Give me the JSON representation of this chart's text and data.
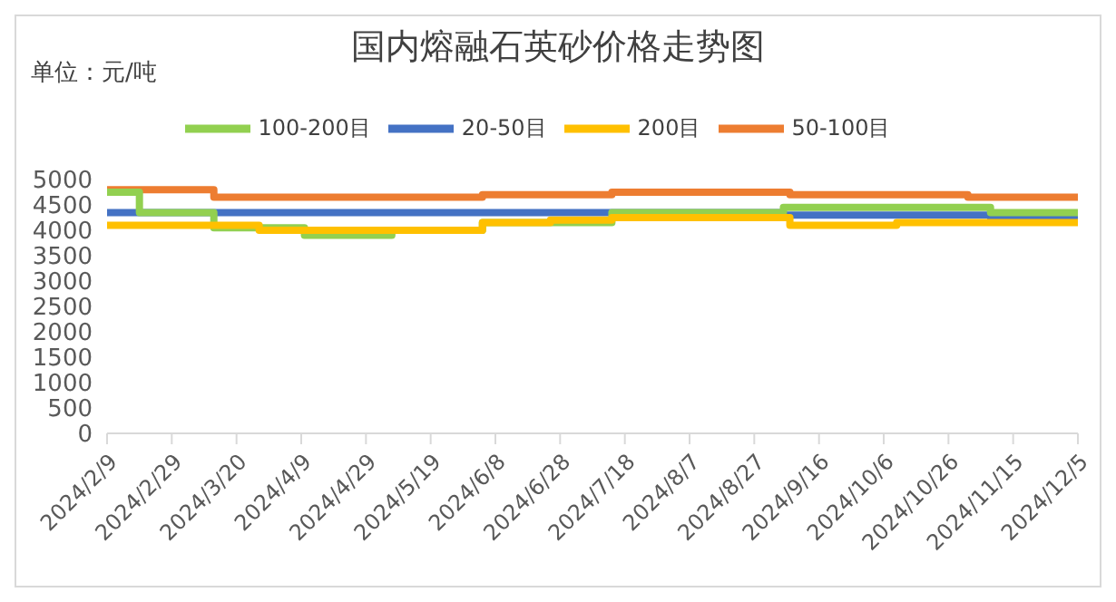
{
  "chart_data": {
    "type": "step",
    "title": "国内熔融石英砂价格走势图",
    "annotations": [
      "单位：元/吨"
    ],
    "xlim": [
      "2024-02-09",
      "2024-12-05"
    ],
    "xticks": [
      {
        "value": "2024-02-09",
        "label": "2024/2/9"
      },
      {
        "value": "2024-02-29",
        "label": "2024/2/29"
      },
      {
        "value": "2024-03-20",
        "label": "2024/3/20"
      },
      {
        "value": "2024-04-09",
        "label": "2024/4/9"
      },
      {
        "value": "2024-04-29",
        "label": "2024/4/29"
      },
      {
        "value": "2024-05-19",
        "label": "2024/5/19"
      },
      {
        "value": "2024-06-08",
        "label": "2024/6/8"
      },
      {
        "value": "2024-06-28",
        "label": "2024/6/28"
      },
      {
        "value": "2024-07-18",
        "label": "2024/7/18"
      },
      {
        "value": "2024-08-07",
        "label": "2024/8/7"
      },
      {
        "value": "2024-08-27",
        "label": "2024/8/27"
      },
      {
        "value": "2024-09-16",
        "label": "2024/9/16"
      },
      {
        "value": "2024-10-06",
        "label": "2024/10/6"
      },
      {
        "value": "2024-10-26",
        "label": "2024/10/26"
      },
      {
        "value": "2024-11-15",
        "label": "2024/11/15"
      },
      {
        "value": "2024-12-05",
        "label": "2024/12/5"
      }
    ],
    "ylim": [
      0,
      5000
    ],
    "yticks": [
      0,
      500,
      1000,
      1500,
      2000,
      2500,
      3000,
      3500,
      4000,
      4500,
      5000
    ],
    "legend": "top",
    "grid": false,
    "marker": "none",
    "line_style": "solid",
    "series": [
      {
        "name": "20-50目",
        "color": "#4472c4",
        "x": [
          "2024-02-09",
          "2024-09-05",
          "2024-11-08",
          "2024-12-05"
        ],
        "values": [
          4350,
          4300,
          4250,
          4250
        ]
      },
      {
        "name": "50-100目",
        "color": "#ed7d31",
        "x": [
          "2024-02-09",
          "2024-03-13",
          "2024-06-04",
          "2024-07-14",
          "2024-09-07",
          "2024-11-01",
          "2024-12-05"
        ],
        "values": [
          4800,
          4650,
          4700,
          4750,
          4700,
          4650,
          4650
        ]
      },
      {
        "name": "100-200目",
        "color": "#92d050",
        "x": [
          "2024-02-09",
          "2024-02-19",
          "2024-03-13",
          "2024-04-10",
          "2024-05-07",
          "2024-06-04",
          "2024-07-14",
          "2024-09-05",
          "2024-11-08",
          "2024-12-05"
        ],
        "values": [
          4750,
          4350,
          4050,
          3900,
          4000,
          4150,
          4350,
          4450,
          4350,
          4350
        ]
      },
      {
        "name": "200目",
        "color": "#ffc000",
        "x": [
          "2024-02-09",
          "2024-03-27",
          "2024-06-04",
          "2024-06-25",
          "2024-07-14",
          "2024-09-07",
          "2024-10-10",
          "2024-12-05"
        ],
        "values": [
          4100,
          4000,
          4150,
          4200,
          4250,
          4100,
          4150,
          4150
        ]
      }
    ]
  }
}
